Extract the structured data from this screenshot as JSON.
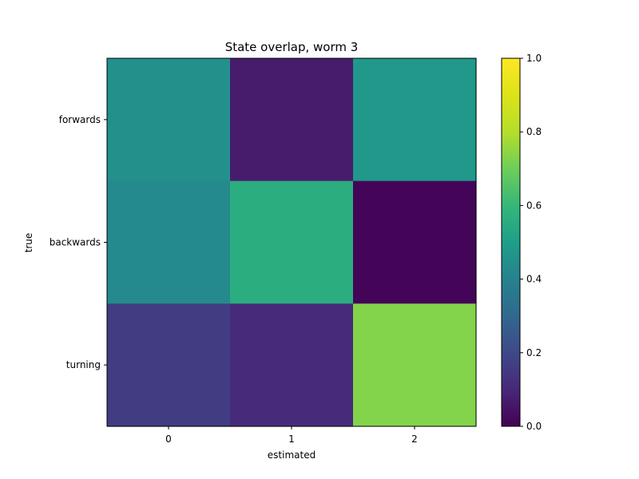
{
  "chart_data": {
    "type": "heatmap",
    "title": "State overlap, worm 3",
    "xlabel": "estimated",
    "ylabel": "true",
    "x_categories": [
      "0",
      "1",
      "2"
    ],
    "y_categories": [
      "forwards",
      "backwards",
      "turning"
    ],
    "values": [
      [
        0.45,
        0.07,
        0.48
      ],
      [
        0.43,
        0.56,
        0.01
      ],
      [
        0.16,
        0.11,
        0.73
      ]
    ],
    "colorbar": {
      "min": 0.0,
      "max": 1.0,
      "ticks": [
        "0.0",
        "0.2",
        "0.4",
        "0.6",
        "0.8",
        "1.0"
      ],
      "colormap": "viridis"
    },
    "grid": false
  }
}
